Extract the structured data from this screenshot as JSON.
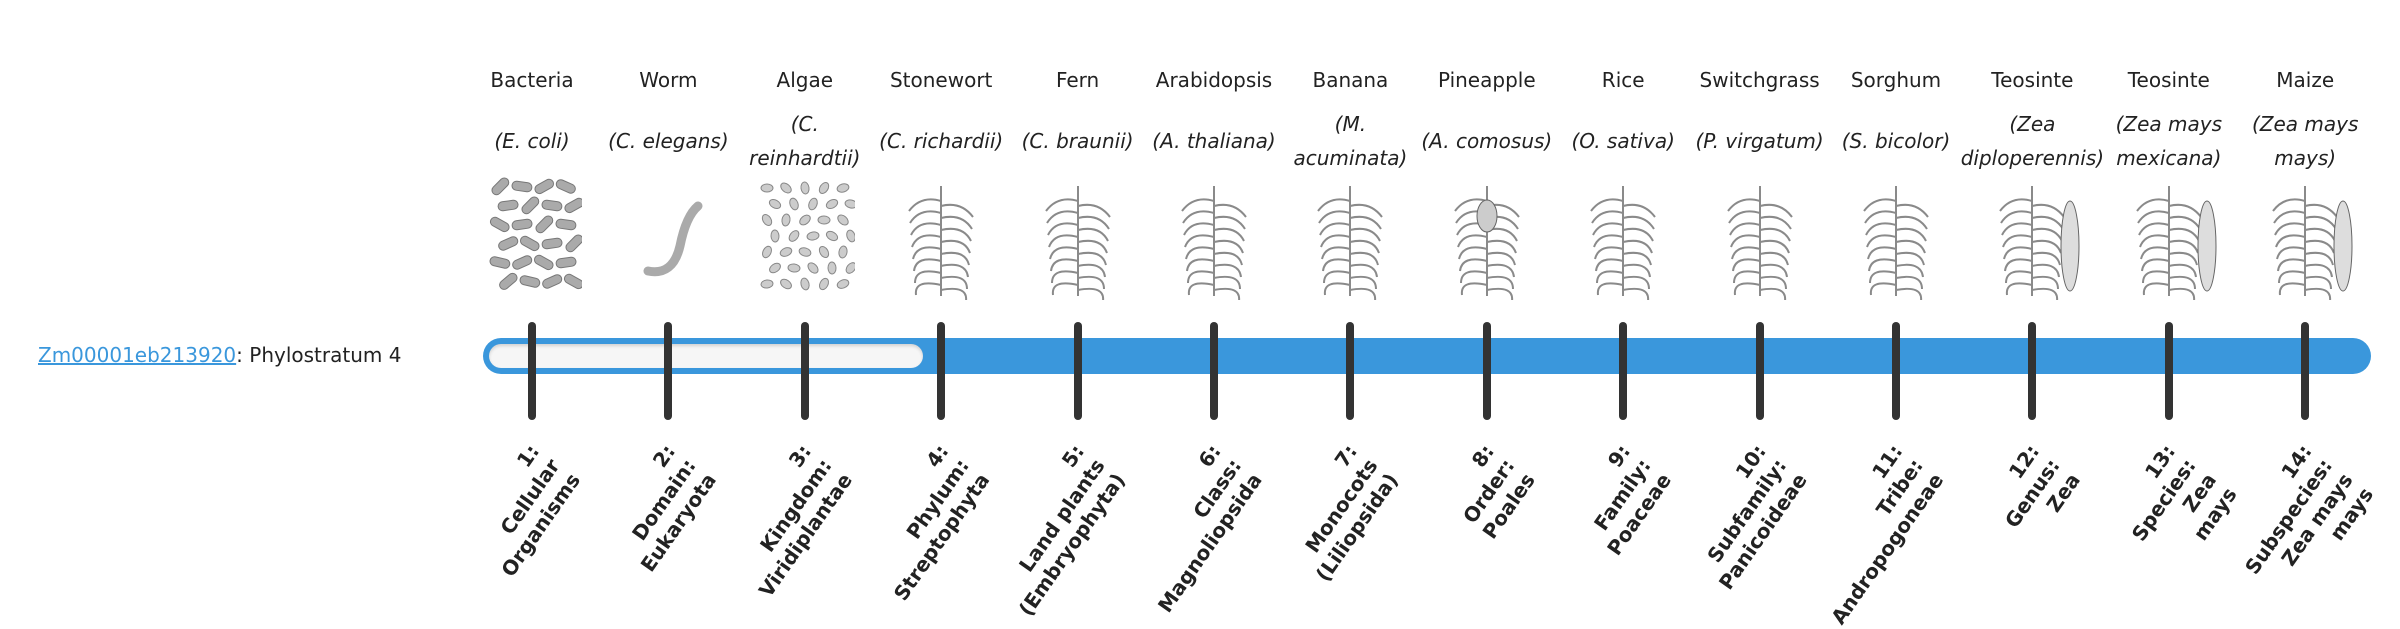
{
  "gene": {
    "id": "Zm00001eb213920",
    "label": ": Phylostratum 4"
  },
  "phylostratum": {
    "current": 4,
    "total": 14
  },
  "colors": {
    "bar": "#3a97dc",
    "tick": "#333333",
    "empty": "#f6f6f6",
    "link": "#3a97dc"
  },
  "organisms": [
    {
      "common": "Bacteria",
      "scientific": "(E. coli)",
      "icon": "bacteria-icon",
      "stratum": [
        "1:",
        "Cellular",
        "Organisms"
      ]
    },
    {
      "common": "Worm",
      "scientific": "(C. elegans)",
      "icon": "worm-icon",
      "stratum": [
        "2:",
        "Domain:",
        "Eukaryota"
      ]
    },
    {
      "common": "Algae",
      "scientific": "(C. reinhardtii)",
      "icon": "algae-icon",
      "stratum": [
        "3:",
        "Kingdom:",
        "Viridiplantae"
      ]
    },
    {
      "common": "Stonewort",
      "scientific": "(C. richardii)",
      "icon": "stonewort-icon",
      "stratum": [
        "4:",
        "Phylum:",
        "Streptophyta"
      ]
    },
    {
      "common": "Fern",
      "scientific": "(C. braunii)",
      "icon": "fern-icon",
      "stratum": [
        "5:",
        "Land plants",
        "(Embryophyta)"
      ]
    },
    {
      "common": "Arabidopsis",
      "scientific": "(A. thaliana)",
      "icon": "arabidopsis-icon",
      "stratum": [
        "6:",
        "Class:",
        "Magnoliopsida"
      ]
    },
    {
      "common": "Banana",
      "scientific": "(M. acuminata)",
      "icon": "banana-icon",
      "stratum": [
        "7:",
        "Monocots",
        "(Liliopsida)"
      ]
    },
    {
      "common": "Pineapple",
      "scientific": "(A. comosus)",
      "icon": "pineapple-icon",
      "stratum": [
        "8:",
        "Order:",
        "Poales"
      ]
    },
    {
      "common": "Rice",
      "scientific": "(O. sativa)",
      "icon": "rice-icon",
      "stratum": [
        "9:",
        "Family:",
        "Poaceae"
      ]
    },
    {
      "common": "Switchgrass",
      "scientific": "(P. virgatum)",
      "icon": "switchgrass-icon",
      "stratum": [
        "10:",
        "Subfamily:",
        "Panicoideae"
      ]
    },
    {
      "common": "Sorghum",
      "scientific": "(S. bicolor)",
      "icon": "sorghum-icon",
      "stratum": [
        "11:",
        "Tribe:",
        "Andropogoneae"
      ]
    },
    {
      "common": "Teosinte",
      "scientific": "(Zea diploperennis)",
      "icon": "teosinte-icon",
      "stratum": [
        "12:",
        "Genus:",
        "Zea"
      ]
    },
    {
      "common": "Teosinte",
      "scientific": "(Zea mays mexicana)",
      "icon": "teosinte-icon",
      "stratum": [
        "13:",
        "Species:",
        "Zea",
        "mays"
      ]
    },
    {
      "common": "Maize",
      "scientific": "(Zea mays mays)",
      "icon": "maize-icon",
      "stratum": [
        "14:",
        "Subspecies:",
        "Zea mays",
        "mays"
      ]
    }
  ]
}
